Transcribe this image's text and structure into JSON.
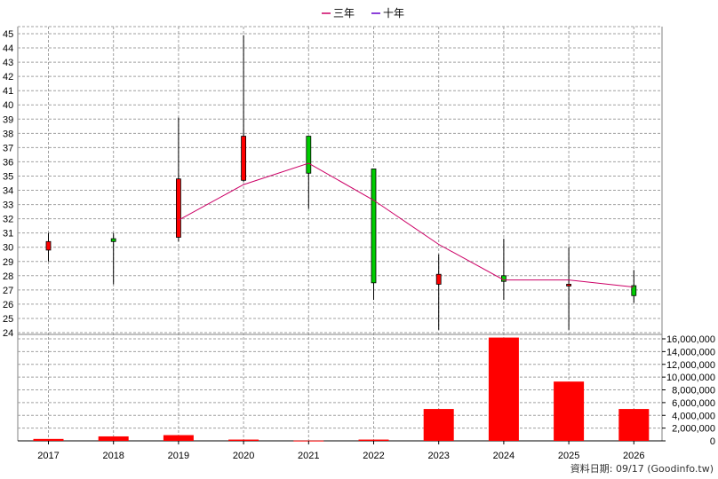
{
  "chart_data": {
    "type": "candlestick+bar",
    "legend": [
      {
        "label": "三年",
        "color": "#cc0066"
      },
      {
        "label": "十年",
        "color": "#6600cc"
      }
    ],
    "categories": [
      "2017",
      "2018",
      "2019",
      "2020",
      "2021",
      "2022",
      "2023",
      "2024",
      "2025",
      "2026"
    ],
    "price_axis": {
      "min": 24,
      "max": 45,
      "step": 1
    },
    "volume_axis": {
      "min": 0,
      "max": 16000000,
      "step": 2000000,
      "tick_labels": [
        "0",
        "2,000,000",
        "4,000,000",
        "6,000,000",
        "8,000,000",
        "10,000,000",
        "12,000,000",
        "14,000,000",
        "16,000,000"
      ]
    },
    "candles": [
      {
        "x": "2017",
        "open": 29.8,
        "close": 30.4,
        "high": 31.0,
        "low": 29.0
      },
      {
        "x": "2018",
        "open": 30.6,
        "close": 30.4,
        "high": 31.0,
        "low": 27.4
      },
      {
        "x": "2019",
        "open": 30.7,
        "close": 34.8,
        "high": 39.1,
        "low": 30.4
      },
      {
        "x": "2020",
        "open": 34.7,
        "close": 37.8,
        "high": 44.9,
        "low": 34.6
      },
      {
        "x": "2021",
        "open": 37.8,
        "close": 35.2,
        "high": 37.8,
        "low": 32.7
      },
      {
        "x": "2022",
        "open": 35.5,
        "close": 27.5,
        "high": 35.5,
        "low": 26.3
      },
      {
        "x": "2023",
        "open": 27.4,
        "close": 28.1,
        "high": 29.5,
        "low": 24.2
      },
      {
        "x": "2024",
        "open": 28.0,
        "close": 27.6,
        "high": 30.6,
        "low": 26.3
      },
      {
        "x": "2025",
        "open": 27.4,
        "close": 27.4,
        "high": 30.0,
        "low": 24.2
      },
      {
        "x": "2026",
        "open": 27.3,
        "close": 26.6,
        "high": 28.4,
        "low": 26.1
      }
    ],
    "three_year_line": [
      {
        "x": "2019",
        "y": 31.9
      },
      {
        "x": "2020",
        "y": 34.4
      },
      {
        "x": "2021",
        "y": 35.9
      },
      {
        "x": "2022",
        "y": 33.3
      },
      {
        "x": "2023",
        "y": 30.2
      },
      {
        "x": "2024",
        "y": 27.7
      },
      {
        "x": "2025",
        "y": 27.7
      },
      {
        "x": "2026",
        "y": 27.2
      }
    ],
    "volume": [
      {
        "x": "2017",
        "value": 300000
      },
      {
        "x": "2018",
        "value": 700000
      },
      {
        "x": "2019",
        "value": 900000
      },
      {
        "x": "2020",
        "value": 200000
      },
      {
        "x": "2021",
        "value": 50000
      },
      {
        "x": "2022",
        "value": 200000
      },
      {
        "x": "2023",
        "value": 5000000
      },
      {
        "x": "2024",
        "value": 16200000
      },
      {
        "x": "2025",
        "value": 9300000
      },
      {
        "x": "2026",
        "value": 5000000
      }
    ],
    "colors": {
      "up": "#ff0000",
      "down": "#00cc00",
      "volume": "#ff0000",
      "grid": "#a0a0a0"
    },
    "grid": true,
    "legend_position": "top-center"
  },
  "source_note": "資料日期: 09/17  (Goodinfo.tw)"
}
